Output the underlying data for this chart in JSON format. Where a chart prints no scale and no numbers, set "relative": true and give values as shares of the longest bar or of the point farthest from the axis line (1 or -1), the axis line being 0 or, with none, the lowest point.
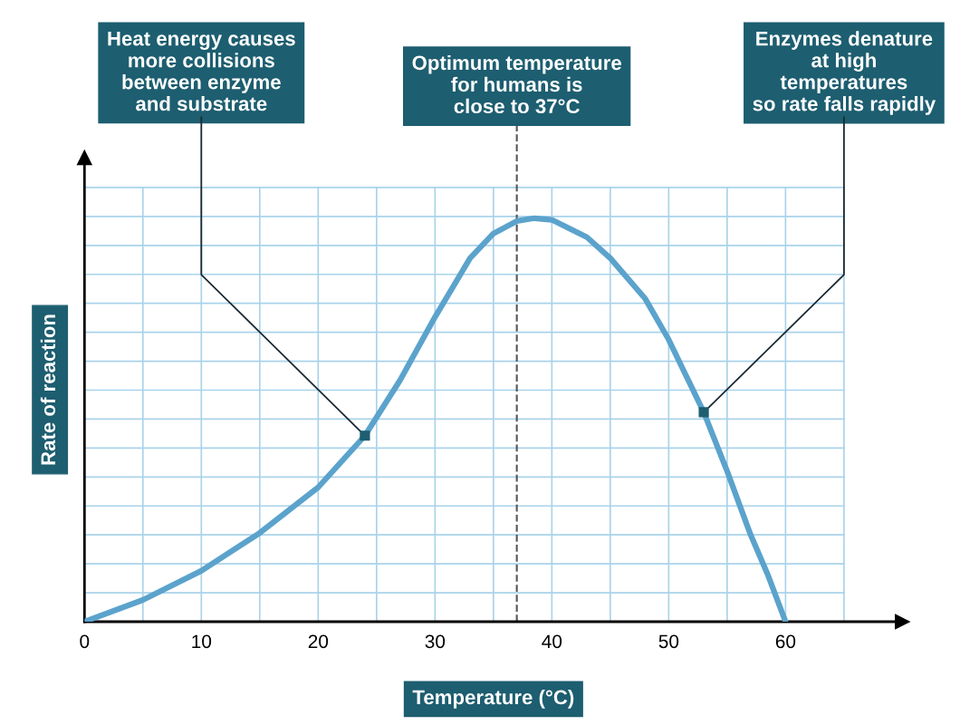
{
  "chart_data": {
    "type": "line",
    "relative": true,
    "xlabel": "Temperature (°C)",
    "ylabel": "Rate of reaction",
    "x": [
      0,
      5,
      10,
      15,
      20,
      24,
      27,
      30,
      33,
      35,
      37,
      38.5,
      40,
      43,
      45,
      48,
      50,
      53,
      55,
      57,
      58.5,
      60
    ],
    "series": [
      {
        "color": "#5ba3cc",
        "values": [
          0,
          0.054,
          0.126,
          0.22,
          0.333,
          0.461,
          0.598,
          0.755,
          0.901,
          0.962,
          0.993,
          1,
          0.996,
          0.953,
          0.901,
          0.8,
          0.699,
          0.519,
          0.373,
          0.216,
          0.115,
          0
        ]
      },
      {
        "type": "scatter",
        "marker": "square",
        "color": "#1d5e70",
        "x": [
          24,
          53
        ],
        "values": [
          0.461,
          0.519
        ]
      }
    ],
    "xlim": [
      0,
      70
    ],
    "xticks": [
      0,
      {
        "value": 5,
        "label": null
      },
      10,
      {
        "value": 15,
        "label": null
      },
      20,
      {
        "value": 25,
        "label": null
      },
      30,
      {
        "value": 35,
        "label": null
      },
      40,
      {
        "value": 45,
        "label": null
      },
      50,
      {
        "value": 55,
        "label": null
      },
      60,
      {
        "value": 65,
        "label": null
      }
    ],
    "grid": true,
    "marker": "none",
    "line_style": "solid",
    "ref_lines": [
      {
        "axis": "x",
        "value": 37,
        "label": "Optimum temperature\nfor humans is\nclose to 37°C",
        "color": "#555555",
        "line_style": "dashed"
      }
    ],
    "annotations": [
      "Heat energy causes\nmore collisions\nbetween enzyme\nand substrate",
      "Enzymes denature\nat high\ntemperatures\nso rate falls rapidly"
    ]
  }
}
